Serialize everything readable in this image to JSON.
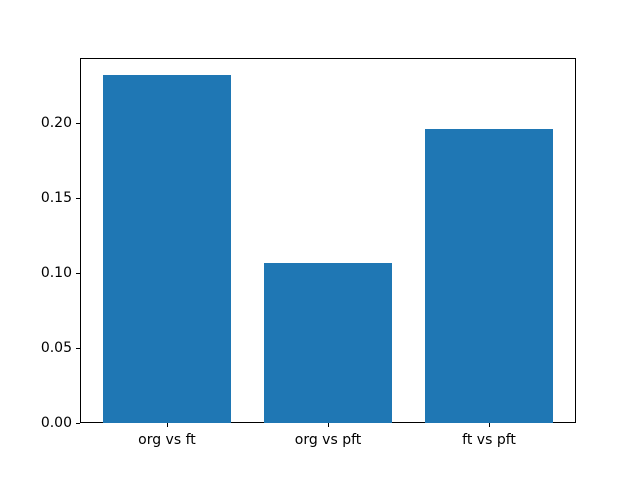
{
  "chart_data": {
    "type": "bar",
    "title": "",
    "xlabel": "",
    "ylabel": "",
    "categories": [
      "org vs ft",
      "org vs pft",
      "ft vs pft"
    ],
    "values": [
      0.232,
      0.107,
      0.196
    ],
    "bar_color": "#1f77b4",
    "ylim": [
      0,
      0.2436
    ],
    "xlim": [
      -0.54,
      2.54
    ],
    "bar_width": 0.8,
    "yticks": [
      0.0,
      0.05,
      0.1,
      0.15,
      0.2
    ],
    "ytick_labels": [
      "0.00",
      "0.05",
      "0.10",
      "0.15",
      "0.20"
    ],
    "grid": false,
    "legend": "none",
    "spine_color": "#000000",
    "background_color": "#ffffff"
  }
}
